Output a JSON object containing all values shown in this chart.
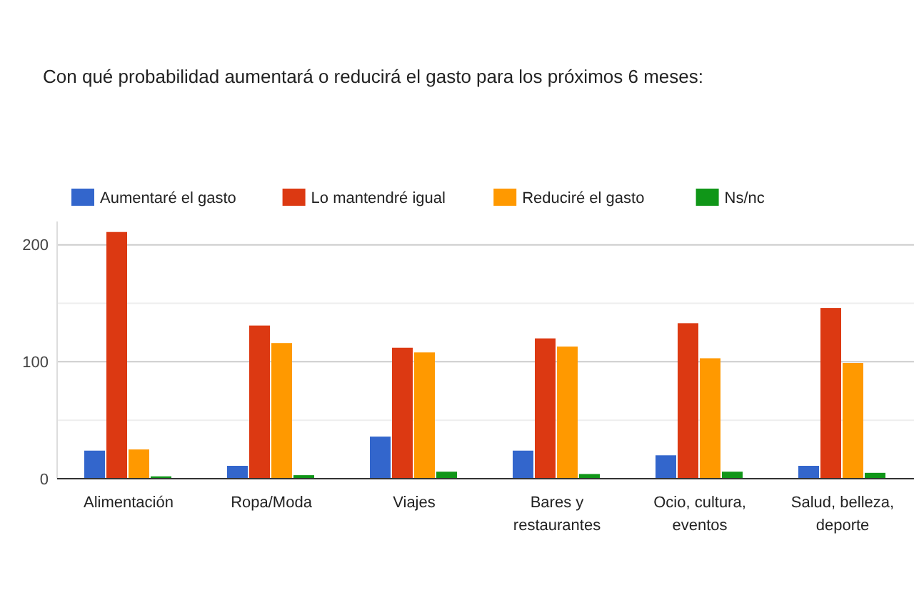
{
  "chart_data": {
    "type": "bar",
    "title": "Con qué probabilidad aumentará o reducirá el gasto para los próximos 6 meses:",
    "categories": [
      "Alimentación",
      "Ropa/Moda",
      "Viajes",
      "Bares y restaurantes",
      "Ocio, cultura, eventos",
      "Salud, belleza, deporte"
    ],
    "series": [
      {
        "name": "Aumentaré el gasto",
        "color": "#3366cc",
        "values": [
          24,
          11,
          36,
          24,
          20,
          11
        ]
      },
      {
        "name": "Lo mantendré igual",
        "color": "#dc3912",
        "values": [
          211,
          131,
          112,
          120,
          133,
          146
        ]
      },
      {
        "name": "Reduciré el gasto",
        "color": "#ff9900",
        "values": [
          25,
          116,
          108,
          113,
          103,
          99
        ]
      },
      {
        "name": "Ns/nc",
        "color": "#109618",
        "values": [
          2,
          3,
          6,
          4,
          6,
          5
        ]
      }
    ],
    "ylim": [
      0,
      220
    ],
    "yticks": [
      0,
      {
        "value": 50,
        "label": null
      },
      100,
      {
        "value": 150,
        "label": null
      },
      200
    ],
    "grid": true,
    "legend": "top left"
  }
}
